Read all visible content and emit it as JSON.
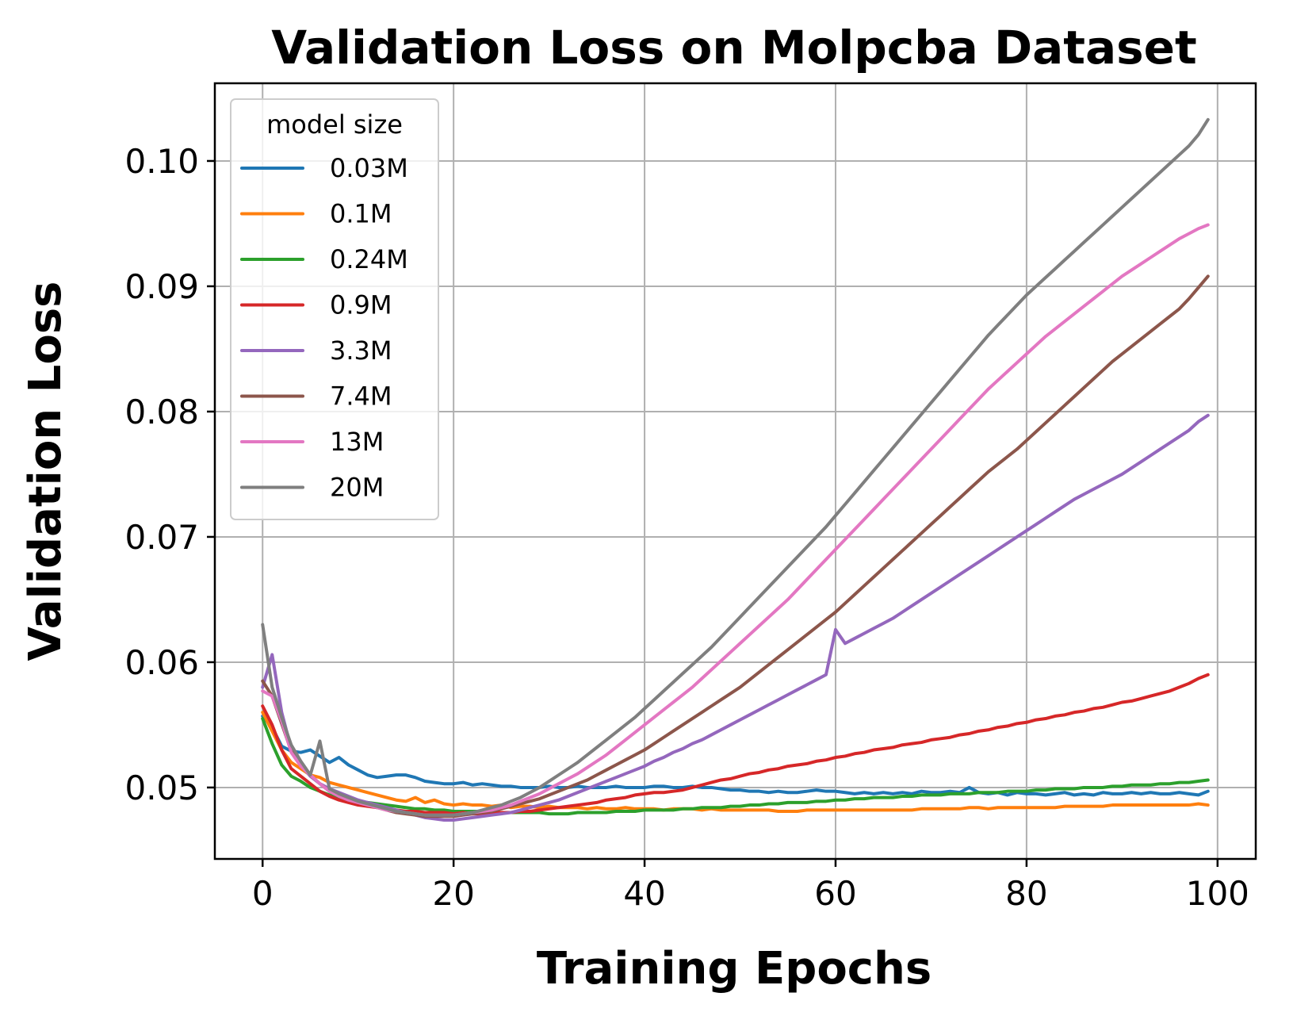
{
  "chart_data": {
    "type": "line",
    "title": "Validation Loss on Molpcba Dataset",
    "xlabel": "Training Epochs",
    "ylabel": "Validation Loss",
    "xlim": [
      -5,
      104
    ],
    "ylim": [
      0.0443,
      0.1062
    ],
    "xticks": [
      0,
      20,
      40,
      60,
      80,
      100
    ],
    "xtick_labels": [
      "0",
      "20",
      "40",
      "60",
      "80",
      "100"
    ],
    "yticks": [
      0.05,
      0.06,
      0.07,
      0.08,
      0.09,
      0.1
    ],
    "ytick_labels": [
      "0.05",
      "0.06",
      "0.07",
      "0.08",
      "0.09",
      "0.10"
    ],
    "grid": true,
    "legend": {
      "title": "model size",
      "position": "upper-left"
    },
    "x_start": 0,
    "x_step": 1,
    "series": [
      {
        "name": "0.03M",
        "color": "#1f77b4",
        "values": [
          0.0557,
          0.0548,
          0.0533,
          0.0529,
          0.0528,
          0.053,
          0.0525,
          0.052,
          0.0524,
          0.0518,
          0.0514,
          0.051,
          0.0508,
          0.0509,
          0.051,
          0.051,
          0.0508,
          0.0505,
          0.0504,
          0.0503,
          0.0503,
          0.0504,
          0.0502,
          0.0503,
          0.0502,
          0.0501,
          0.0501,
          0.05,
          0.05,
          0.05,
          0.0501,
          0.05,
          0.05,
          0.0501,
          0.05,
          0.05,
          0.05,
          0.0501,
          0.05,
          0.05,
          0.05,
          0.0501,
          0.0501,
          0.05,
          0.05,
          0.0501,
          0.05,
          0.05,
          0.0499,
          0.0498,
          0.0498,
          0.0497,
          0.0497,
          0.0496,
          0.0497,
          0.0496,
          0.0496,
          0.0497,
          0.0498,
          0.0497,
          0.0497,
          0.0496,
          0.0495,
          0.0496,
          0.0495,
          0.0496,
          0.0495,
          0.0496,
          0.0495,
          0.0497,
          0.0496,
          0.0496,
          0.0497,
          0.0496,
          0.05,
          0.0496,
          0.0495,
          0.0496,
          0.0494,
          0.0496,
          0.0495,
          0.0495,
          0.0494,
          0.0495,
          0.0496,
          0.0494,
          0.0495,
          0.0494,
          0.0496,
          0.0495,
          0.0495,
          0.0496,
          0.0495,
          0.0496,
          0.0495,
          0.0495,
          0.0496,
          0.0495,
          0.0494,
          0.0497
        ]
      },
      {
        "name": "0.1M",
        "color": "#ff7f0e",
        "values": [
          0.056,
          0.0545,
          0.053,
          0.052,
          0.0515,
          0.051,
          0.0508,
          0.0504,
          0.0502,
          0.05,
          0.0498,
          0.0496,
          0.0494,
          0.0492,
          0.049,
          0.0489,
          0.0492,
          0.0488,
          0.049,
          0.0487,
          0.0486,
          0.0487,
          0.0486,
          0.0486,
          0.0485,
          0.0486,
          0.0484,
          0.0485,
          0.0485,
          0.0484,
          0.0485,
          0.0484,
          0.0484,
          0.0484,
          0.0483,
          0.0484,
          0.0483,
          0.0483,
          0.0484,
          0.0483,
          0.0483,
          0.0483,
          0.0482,
          0.0483,
          0.0483,
          0.0483,
          0.0482,
          0.0483,
          0.0482,
          0.0482,
          0.0482,
          0.0482,
          0.0482,
          0.0482,
          0.0481,
          0.0481,
          0.0481,
          0.0482,
          0.0482,
          0.0482,
          0.0482,
          0.0482,
          0.0482,
          0.0482,
          0.0482,
          0.0482,
          0.0482,
          0.0482,
          0.0482,
          0.0483,
          0.0483,
          0.0483,
          0.0483,
          0.0483,
          0.0484,
          0.0484,
          0.0483,
          0.0484,
          0.0484,
          0.0484,
          0.0484,
          0.0484,
          0.0484,
          0.0484,
          0.0485,
          0.0485,
          0.0485,
          0.0485,
          0.0485,
          0.0486,
          0.0486,
          0.0486,
          0.0486,
          0.0486,
          0.0486,
          0.0486,
          0.0486,
          0.0486,
          0.0487,
          0.0486
        ]
      },
      {
        "name": "0.24M",
        "color": "#2ca02c",
        "values": [
          0.0555,
          0.0535,
          0.0518,
          0.0509,
          0.0505,
          0.05,
          0.0497,
          0.0494,
          0.0492,
          0.049,
          0.0489,
          0.0488,
          0.0487,
          0.0486,
          0.0485,
          0.0484,
          0.0483,
          0.0483,
          0.0482,
          0.0482,
          0.0481,
          0.0481,
          0.0481,
          0.0481,
          0.048,
          0.048,
          0.048,
          0.048,
          0.048,
          0.048,
          0.0479,
          0.0479,
          0.0479,
          0.048,
          0.048,
          0.048,
          0.048,
          0.0481,
          0.0481,
          0.0481,
          0.0482,
          0.0482,
          0.0482,
          0.0482,
          0.0483,
          0.0483,
          0.0484,
          0.0484,
          0.0484,
          0.0485,
          0.0485,
          0.0486,
          0.0486,
          0.0487,
          0.0487,
          0.0488,
          0.0488,
          0.0488,
          0.0489,
          0.0489,
          0.049,
          0.049,
          0.0491,
          0.0491,
          0.0492,
          0.0492,
          0.0492,
          0.0493,
          0.0493,
          0.0494,
          0.0494,
          0.0494,
          0.0495,
          0.0495,
          0.0495,
          0.0496,
          0.0496,
          0.0496,
          0.0497,
          0.0497,
          0.0497,
          0.0498,
          0.0498,
          0.0499,
          0.0499,
          0.0499,
          0.05,
          0.05,
          0.05,
          0.0501,
          0.0501,
          0.0502,
          0.0502,
          0.0502,
          0.0503,
          0.0503,
          0.0504,
          0.0504,
          0.0505,
          0.0506
        ]
      },
      {
        "name": "0.9M",
        "color": "#d62728",
        "values": [
          0.0565,
          0.055,
          0.053,
          0.0515,
          0.0509,
          0.0503,
          0.0497,
          0.0493,
          0.049,
          0.0488,
          0.0486,
          0.0485,
          0.0484,
          0.0483,
          0.0482,
          0.0481,
          0.0481,
          0.048,
          0.048,
          0.048,
          0.0479,
          0.048,
          0.0479,
          0.0479,
          0.048,
          0.048,
          0.048,
          0.0481,
          0.0481,
          0.0482,
          0.0483,
          0.0484,
          0.0485,
          0.0486,
          0.0487,
          0.0488,
          0.049,
          0.0491,
          0.0492,
          0.0494,
          0.0495,
          0.0496,
          0.0496,
          0.0497,
          0.0498,
          0.05,
          0.0502,
          0.0504,
          0.0506,
          0.0507,
          0.0509,
          0.0511,
          0.0512,
          0.0514,
          0.0515,
          0.0517,
          0.0518,
          0.0519,
          0.0521,
          0.0522,
          0.0524,
          0.0525,
          0.0527,
          0.0528,
          0.053,
          0.0531,
          0.0532,
          0.0534,
          0.0535,
          0.0536,
          0.0538,
          0.0539,
          0.054,
          0.0542,
          0.0543,
          0.0545,
          0.0546,
          0.0548,
          0.0549,
          0.0551,
          0.0552,
          0.0554,
          0.0555,
          0.0557,
          0.0558,
          0.056,
          0.0561,
          0.0563,
          0.0564,
          0.0566,
          0.0568,
          0.0569,
          0.0571,
          0.0573,
          0.0575,
          0.0577,
          0.058,
          0.0583,
          0.0587,
          0.059
        ]
      },
      {
        "name": "3.3M",
        "color": "#9467bd",
        "values": [
          0.058,
          0.0606,
          0.056,
          0.0531,
          0.0518,
          0.0509,
          0.0503,
          0.0499,
          0.0496,
          0.0493,
          0.049,
          0.0488,
          0.0486,
          0.0484,
          0.0482,
          0.048,
          0.0478,
          0.0476,
          0.0475,
          0.0474,
          0.0474,
          0.0475,
          0.0476,
          0.0477,
          0.0478,
          0.0479,
          0.048,
          0.0482,
          0.0484,
          0.0486,
          0.0488,
          0.049,
          0.0493,
          0.0496,
          0.0499,
          0.0502,
          0.0505,
          0.0508,
          0.0511,
          0.0514,
          0.0517,
          0.0521,
          0.0524,
          0.0528,
          0.0531,
          0.0535,
          0.0538,
          0.0542,
          0.0546,
          0.055,
          0.0554,
          0.0558,
          0.0562,
          0.0566,
          0.057,
          0.0574,
          0.0578,
          0.0582,
          0.0586,
          0.059,
          0.0626,
          0.0615,
          0.0619,
          0.0623,
          0.0627,
          0.0631,
          0.0635,
          0.064,
          0.0645,
          0.065,
          0.0655,
          0.066,
          0.0665,
          0.067,
          0.0675,
          0.068,
          0.0685,
          0.069,
          0.0695,
          0.07,
          0.0705,
          0.071,
          0.0715,
          0.072,
          0.0725,
          0.073,
          0.0734,
          0.0738,
          0.0742,
          0.0746,
          0.075,
          0.0755,
          0.076,
          0.0765,
          0.077,
          0.0775,
          0.078,
          0.0785,
          0.0792,
          0.0797
        ]
      },
      {
        "name": "7.4M",
        "color": "#8c564b",
        "values": [
          0.0585,
          0.0573,
          0.0551,
          0.0529,
          0.0518,
          0.051,
          0.0503,
          0.0497,
          0.0493,
          0.049,
          0.0488,
          0.0486,
          0.0484,
          0.0482,
          0.048,
          0.0479,
          0.0478,
          0.0477,
          0.0477,
          0.0477,
          0.0477,
          0.0478,
          0.0479,
          0.048,
          0.0481,
          0.0483,
          0.0485,
          0.0487,
          0.0489,
          0.0491,
          0.0494,
          0.0497,
          0.05,
          0.0503,
          0.0506,
          0.051,
          0.0514,
          0.0518,
          0.0522,
          0.0526,
          0.053,
          0.0535,
          0.054,
          0.0545,
          0.055,
          0.0555,
          0.056,
          0.0565,
          0.057,
          0.0575,
          0.058,
          0.0586,
          0.0592,
          0.0598,
          0.0604,
          0.061,
          0.0616,
          0.0622,
          0.0628,
          0.0634,
          0.064,
          0.0647,
          0.0654,
          0.0661,
          0.0668,
          0.0675,
          0.0682,
          0.0689,
          0.0696,
          0.0703,
          0.071,
          0.0717,
          0.0724,
          0.0731,
          0.0738,
          0.0745,
          0.0752,
          0.0758,
          0.0764,
          0.077,
          0.0777,
          0.0784,
          0.0791,
          0.0798,
          0.0805,
          0.0812,
          0.0819,
          0.0826,
          0.0833,
          0.084,
          0.0846,
          0.0852,
          0.0858,
          0.0864,
          0.087,
          0.0876,
          0.0882,
          0.089,
          0.0899,
          0.0908
        ]
      },
      {
        "name": "13M",
        "color": "#e377c2",
        "values": [
          0.0577,
          0.0573,
          0.0553,
          0.0528,
          0.0517,
          0.051,
          0.0503,
          0.0497,
          0.0493,
          0.049,
          0.0488,
          0.0486,
          0.0484,
          0.0482,
          0.0481,
          0.048,
          0.0479,
          0.0478,
          0.0478,
          0.0478,
          0.0478,
          0.0479,
          0.048,
          0.0481,
          0.0482,
          0.0484,
          0.0486,
          0.0489,
          0.0492,
          0.0495,
          0.0499,
          0.0503,
          0.0507,
          0.0511,
          0.0516,
          0.0521,
          0.0526,
          0.0532,
          0.0538,
          0.0544,
          0.055,
          0.0556,
          0.0562,
          0.0568,
          0.0574,
          0.058,
          0.0587,
          0.0594,
          0.0601,
          0.0608,
          0.0615,
          0.0622,
          0.0629,
          0.0636,
          0.0643,
          0.065,
          0.0658,
          0.0666,
          0.0674,
          0.0682,
          0.069,
          0.0698,
          0.0706,
          0.0714,
          0.0722,
          0.073,
          0.0738,
          0.0746,
          0.0754,
          0.0762,
          0.077,
          0.0778,
          0.0786,
          0.0794,
          0.0802,
          0.081,
          0.0818,
          0.0825,
          0.0832,
          0.0839,
          0.0846,
          0.0853,
          0.086,
          0.0866,
          0.0872,
          0.0878,
          0.0884,
          0.089,
          0.0896,
          0.0902,
          0.0908,
          0.0913,
          0.0918,
          0.0923,
          0.0928,
          0.0933,
          0.0938,
          0.0942,
          0.0946,
          0.0949
        ]
      },
      {
        "name": "20M",
        "color": "#7f7f7f",
        "values": [
          0.063,
          0.058,
          0.0556,
          0.0534,
          0.0521,
          0.051,
          0.0537,
          0.0499,
          0.0495,
          0.0492,
          0.0489,
          0.0487,
          0.0485,
          0.0483,
          0.0481,
          0.048,
          0.0479,
          0.0478,
          0.0478,
          0.0478,
          0.0478,
          0.0479,
          0.048,
          0.0482,
          0.0484,
          0.0486,
          0.0489,
          0.0492,
          0.0496,
          0.05,
          0.0505,
          0.051,
          0.0515,
          0.052,
          0.0526,
          0.0532,
          0.0538,
          0.0544,
          0.055,
          0.0556,
          0.0563,
          0.057,
          0.0577,
          0.0584,
          0.0591,
          0.0598,
          0.0605,
          0.0612,
          0.062,
          0.0628,
          0.0636,
          0.0644,
          0.0652,
          0.066,
          0.0668,
          0.0676,
          0.0684,
          0.0692,
          0.07,
          0.0708,
          0.0717,
          0.0726,
          0.0735,
          0.0744,
          0.0753,
          0.0762,
          0.0771,
          0.078,
          0.0789,
          0.0798,
          0.0807,
          0.0816,
          0.0825,
          0.0834,
          0.0843,
          0.0852,
          0.0861,
          0.0869,
          0.0877,
          0.0885,
          0.0893,
          0.09,
          0.0907,
          0.0914,
          0.0921,
          0.0928,
          0.0935,
          0.0942,
          0.0949,
          0.0956,
          0.0963,
          0.097,
          0.0977,
          0.0984,
          0.0991,
          0.0998,
          0.1005,
          0.1012,
          0.1021,
          0.1033
        ]
      }
    ]
  }
}
